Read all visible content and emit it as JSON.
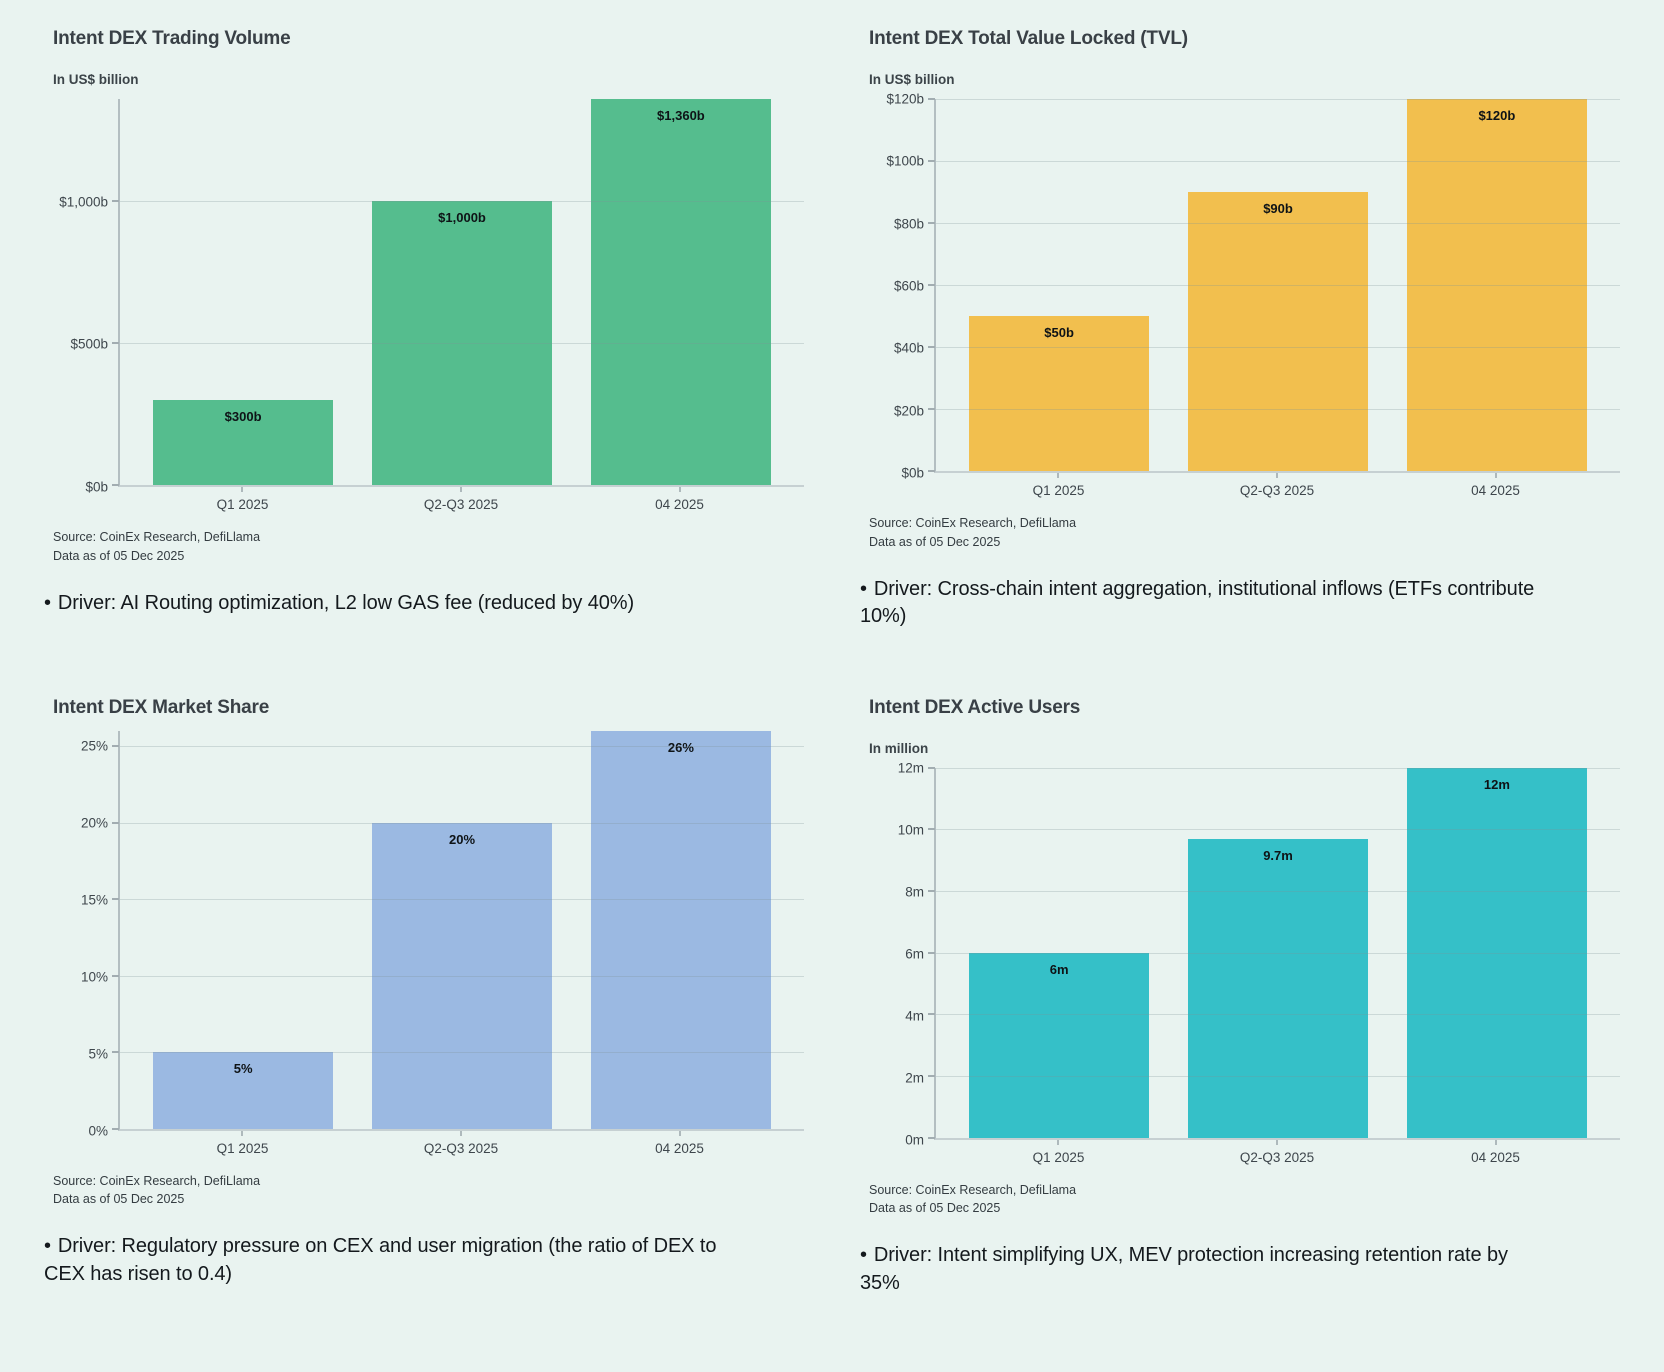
{
  "page": {
    "background_color": "#e9f3f0"
  },
  "chart_data": [
    {
      "type": "bar",
      "title": "Intent DEX Trading Volume",
      "unit_label": "In US$ billion",
      "categories": [
        "Q1 2025",
        "Q2-Q3 2025",
        "04 2025"
      ],
      "values": [
        300,
        1000,
        1360
      ],
      "value_labels": [
        "$300b",
        "$1,000b",
        "$1,360b"
      ],
      "y_max": 1360,
      "y_ticks": [
        {
          "value": 0,
          "label": "$0b"
        },
        {
          "value": 500,
          "label": "$500b"
        },
        {
          "value": 1000,
          "label": "$1,000b"
        }
      ],
      "bar_color": "#55bd8e",
      "grid": true,
      "legend": "none",
      "source": "Source: CoinEx Research, DefiLlama",
      "data_as_of": "Data as of 05 Dec 2025",
      "driver_bullet": "•",
      "driver": "Driver: AI Routing optimization, L2 low GAS fee (reduced by 40%)"
    },
    {
      "type": "bar",
      "title": "Intent DEX Total Value Locked (TVL)",
      "unit_label": "In US$ billion",
      "categories": [
        "Q1 2025",
        "Q2-Q3 2025",
        "04 2025"
      ],
      "values": [
        50,
        90,
        120
      ],
      "value_labels": [
        "$50b",
        "$90b",
        "$120b"
      ],
      "y_max": 120,
      "y_ticks": [
        {
          "value": 0,
          "label": "$0b"
        },
        {
          "value": 20,
          "label": "$20b"
        },
        {
          "value": 40,
          "label": "$40b"
        },
        {
          "value": 60,
          "label": "$60b"
        },
        {
          "value": 80,
          "label": "$80b"
        },
        {
          "value": 100,
          "label": "$100b"
        },
        {
          "value": 120,
          "label": "$120b"
        }
      ],
      "bar_color": "#f2bf4e",
      "grid": true,
      "legend": "none",
      "source": "Source: CoinEx Research, DefiLlama",
      "data_as_of": "Data as of 05 Dec 2025",
      "driver_bullet": "•",
      "driver": "Driver: Cross-chain intent aggregation, institutional inflows (ETFs contribute 10%)"
    },
    {
      "type": "bar",
      "title": "Intent DEX Market Share",
      "unit_label": "",
      "categories": [
        "Q1 2025",
        "Q2-Q3 2025",
        "04 2025"
      ],
      "values": [
        5,
        20,
        26
      ],
      "value_labels": [
        "5%",
        "20%",
        "26%"
      ],
      "y_max": 26,
      "y_ticks": [
        {
          "value": 0,
          "label": "0%"
        },
        {
          "value": 5,
          "label": "5%"
        },
        {
          "value": 10,
          "label": "10%"
        },
        {
          "value": 15,
          "label": "15%"
        },
        {
          "value": 20,
          "label": "20%"
        },
        {
          "value": 25,
          "label": "25%"
        }
      ],
      "bar_color": "#9bb9e2",
      "grid": true,
      "legend": "none",
      "source": "Source: CoinEx Research, DefiLlama",
      "data_as_of": "Data as of 05 Dec 2025",
      "driver_bullet": "•",
      "driver": "Driver: Regulatory pressure on CEX and user migration (the ratio of DEX to CEX has risen to 0.4)"
    },
    {
      "type": "bar",
      "title": "Intent DEX Active Users",
      "unit_label": "In million",
      "categories": [
        "Q1 2025",
        "Q2-Q3 2025",
        "04 2025"
      ],
      "values": [
        6,
        9.7,
        12
      ],
      "value_labels": [
        "6m",
        "9.7m",
        "12m"
      ],
      "y_max": 12,
      "y_ticks": [
        {
          "value": 0,
          "label": "0m"
        },
        {
          "value": 2,
          "label": "2m"
        },
        {
          "value": 4,
          "label": "4m"
        },
        {
          "value": 6,
          "label": "6m"
        },
        {
          "value": 8,
          "label": "8m"
        },
        {
          "value": 10,
          "label": "10m"
        },
        {
          "value": 12,
          "label": "12m"
        }
      ],
      "bar_color": "#35c0c8",
      "grid": true,
      "legend": "none",
      "source": "Source: CoinEx Research, DefiLlama",
      "data_as_of": "Data as of 05 Dec 2025",
      "driver_bullet": "•",
      "driver": "Driver: Intent simplifying UX, MEV protection increasing retention rate by 35%"
    }
  ]
}
